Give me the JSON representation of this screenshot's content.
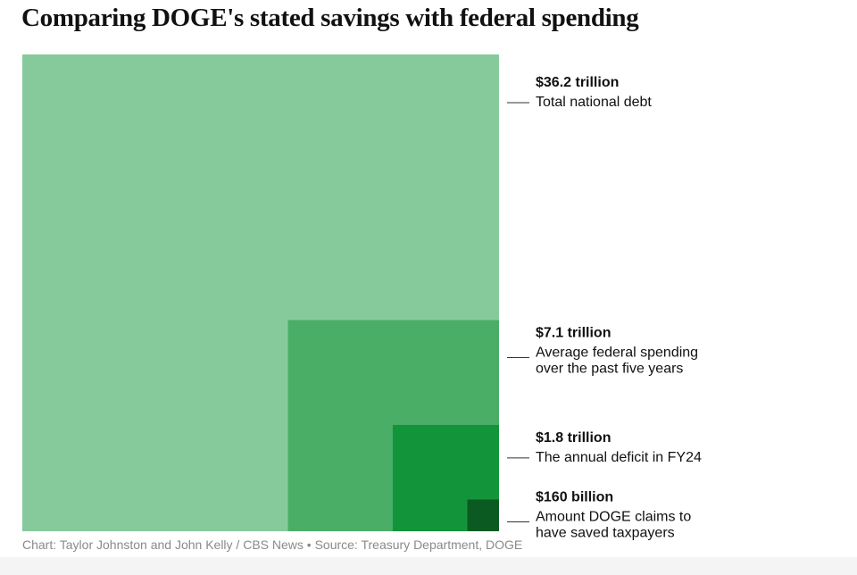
{
  "title": "Comparing DOGE's stated savings with federal spending",
  "source": "Chart: Taylor Johnston and John Kelly / CBS News • Source: Treasury Department, DOGE",
  "chart_data": {
    "type": "nested-square-area",
    "title": "Comparing DOGE's stated savings with federal spending",
    "unit": "US dollars (trillions)",
    "items": [
      {
        "name": "debt",
        "value": 36.2,
        "value_label": "$36.2 trillion",
        "description": [
          "Total national debt"
        ],
        "color": "#86ca9b"
      },
      {
        "name": "spending",
        "value": 7.1,
        "value_label": "$7.1 trillion",
        "description": [
          "Average federal spending",
          "over the past five years"
        ],
        "color": "#4aae67"
      },
      {
        "name": "deficit",
        "value": 1.8,
        "value_label": "$1.8 trillion",
        "description": [
          "The annual deficit in FY24"
        ],
        "color": "#12953a"
      },
      {
        "name": "doge",
        "value": 0.16,
        "value_label": "$160 billion",
        "description": [
          "Amount DOGE claims to",
          "have saved taxpayers"
        ],
        "color": "#0b5a21"
      }
    ]
  }
}
